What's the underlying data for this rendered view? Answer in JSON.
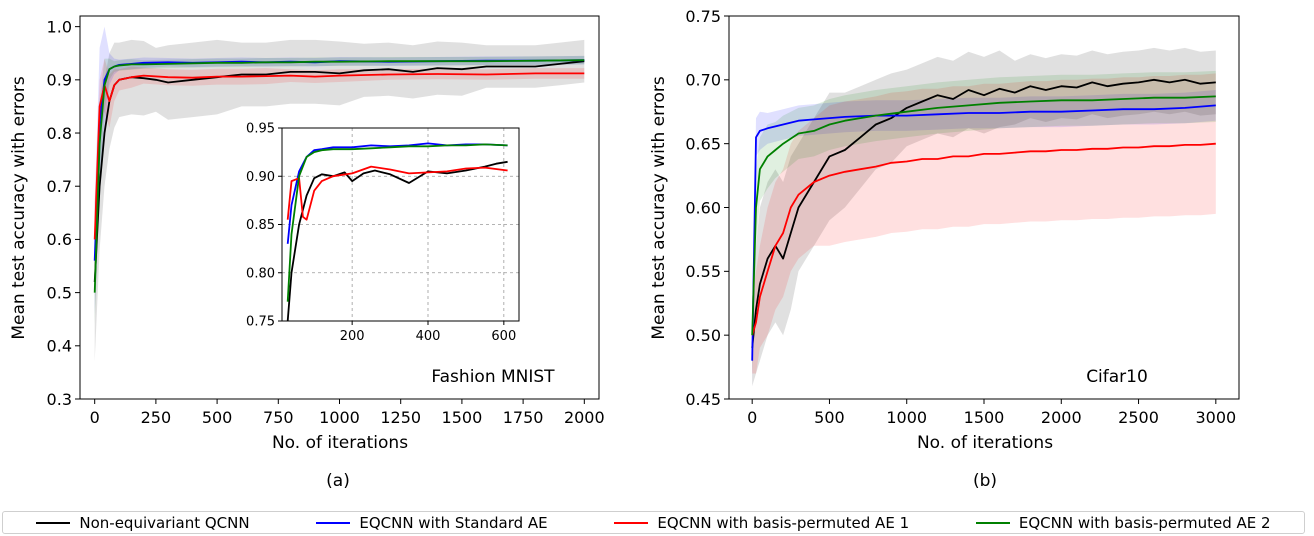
{
  "legend": [
    {
      "label": "Non-equivariant QCNN",
      "color": "#000000"
    },
    {
      "label": "EQCNN with Standard AE",
      "color": "#0000ff"
    },
    {
      "label": "EQCNN with basis-permuted AE 1",
      "color": "#ff0000"
    },
    {
      "label": "EQCNN with basis-permuted AE 2",
      "color": "#008000"
    }
  ],
  "chart_data": [
    {
      "type": "line",
      "panel_label": "(a)",
      "annotation": "Fashion MNIST",
      "xlabel": "No. of iterations",
      "ylabel": "Mean test accuracy with errors",
      "xlim": [
        -60,
        2060
      ],
      "ylim": [
        0.3,
        1.02
      ],
      "xticks": [
        0,
        250,
        500,
        750,
        1000,
        1250,
        1500,
        1750,
        2000
      ],
      "yticks": [
        0.3,
        0.4,
        0.5,
        0.6,
        0.7,
        0.8,
        0.9,
        1.0
      ],
      "ytick_labels": [
        "0.3",
        "0.4",
        "0.5",
        "0.6",
        "0.7",
        "0.8",
        "0.9",
        "1.0"
      ],
      "grid": false,
      "series": [
        {
          "name": "Non-equivariant QCNN",
          "color": "#000000",
          "x": [
            0,
            20,
            40,
            60,
            80,
            100,
            150,
            200,
            250,
            300,
            400,
            500,
            600,
            700,
            800,
            900,
            1000,
            1100,
            1200,
            1300,
            1400,
            1500,
            1600,
            1700,
            1800,
            1900,
            2000
          ],
          "y": [
            0.52,
            0.7,
            0.8,
            0.86,
            0.89,
            0.9,
            0.905,
            0.903,
            0.9,
            0.895,
            0.9,
            0.905,
            0.91,
            0.91,
            0.915,
            0.915,
            0.912,
            0.918,
            0.92,
            0.915,
            0.922,
            0.92,
            0.925,
            0.925,
            0.925,
            0.93,
            0.935
          ],
          "err": [
            0.15,
            0.12,
            0.1,
            0.09,
            0.08,
            0.07,
            0.07,
            0.07,
            0.06,
            0.07,
            0.07,
            0.07,
            0.06,
            0.06,
            0.06,
            0.06,
            0.06,
            0.05,
            0.05,
            0.05,
            0.05,
            0.05,
            0.04,
            0.04,
            0.04,
            0.04,
            0.04
          ]
        },
        {
          "name": "EQCNN with Standard AE",
          "color": "#0000ff",
          "x": [
            0,
            20,
            40,
            60,
            80,
            100,
            150,
            200,
            300,
            400,
            500,
            600,
            700,
            800,
            900,
            1000,
            1200,
            1400,
            1600,
            1800,
            2000
          ],
          "y": [
            0.56,
            0.82,
            0.9,
            0.92,
            0.925,
            0.928,
            0.93,
            0.932,
            0.933,
            0.932,
            0.933,
            0.934,
            0.933,
            0.934,
            0.933,
            0.935,
            0.934,
            0.935,
            0.936,
            0.936,
            0.937
          ],
          "err": [
            0.1,
            0.14,
            0.1,
            0.03,
            0.015,
            0.01,
            0.01,
            0.01,
            0.008,
            0.008,
            0.008,
            0.008,
            0.008,
            0.008,
            0.008,
            0.008,
            0.008,
            0.008,
            0.008,
            0.008,
            0.008
          ]
        },
        {
          "name": "EQCNN with basis-permuted AE 1",
          "color": "#ff0000",
          "x": [
            0,
            20,
            40,
            60,
            80,
            100,
            150,
            200,
            300,
            400,
            500,
            600,
            700,
            800,
            900,
            1000,
            1200,
            1400,
            1600,
            1800,
            2000
          ],
          "y": [
            0.6,
            0.85,
            0.89,
            0.86,
            0.89,
            0.9,
            0.905,
            0.908,
            0.905,
            0.904,
            0.906,
            0.906,
            0.907,
            0.908,
            0.906,
            0.908,
            0.91,
            0.911,
            0.91,
            0.912,
            0.912
          ],
          "err": [
            0.08,
            0.05,
            0.05,
            0.05,
            0.03,
            0.02,
            0.02,
            0.015,
            0.015,
            0.015,
            0.015,
            0.015,
            0.015,
            0.012,
            0.012,
            0.012,
            0.01,
            0.01,
            0.01,
            0.01,
            0.01
          ]
        },
        {
          "name": "EQCNN with basis-permuted AE 2",
          "color": "#008000",
          "x": [
            0,
            20,
            40,
            60,
            80,
            100,
            150,
            200,
            300,
            400,
            500,
            600,
            700,
            800,
            900,
            1000,
            1200,
            1400,
            1600,
            1800,
            2000
          ],
          "y": [
            0.5,
            0.78,
            0.89,
            0.92,
            0.925,
            0.927,
            0.929,
            0.929,
            0.93,
            0.931,
            0.932,
            0.932,
            0.933,
            0.933,
            0.934,
            0.934,
            0.935,
            0.935,
            0.935,
            0.936,
            0.937
          ],
          "err": [
            0.06,
            0.08,
            0.05,
            0.02,
            0.01,
            0.01,
            0.01,
            0.008,
            0.008,
            0.008,
            0.008,
            0.008,
            0.008,
            0.008,
            0.008,
            0.008,
            0.008,
            0.008,
            0.008,
            0.008,
            0.008
          ]
        }
      ],
      "inset": {
        "xlim": [
          15,
          640
        ],
        "ylim": [
          0.75,
          0.95
        ],
        "xticks": [
          200,
          400,
          600
        ],
        "yticks": [
          0.75,
          0.8,
          0.85,
          0.9,
          0.95
        ],
        "ytick_labels": [
          "0.75",
          "0.80",
          "0.85",
          "0.90",
          "0.95"
        ],
        "grid": true,
        "series": [
          {
            "name": "Non-equivariant QCNN",
            "color": "#000000",
            "x": [
              30,
              40,
              60,
              80,
              100,
              120,
              150,
              180,
              200,
              230,
              260,
              300,
              350,
              400,
              450,
              500,
              550,
              580,
              610
            ],
            "y": [
              0.75,
              0.8,
              0.85,
              0.88,
              0.898,
              0.902,
              0.9,
              0.904,
              0.895,
              0.903,
              0.906,
              0.902,
              0.893,
              0.905,
              0.903,
              0.906,
              0.91,
              0.913,
              0.915
            ]
          },
          {
            "name": "EQCNN with Standard AE",
            "color": "#0000ff",
            "x": [
              30,
              40,
              60,
              80,
              100,
              120,
              150,
              200,
              250,
              300,
              350,
              400,
              450,
              500,
              550,
              610
            ],
            "y": [
              0.83,
              0.87,
              0.905,
              0.92,
              0.927,
              0.928,
              0.93,
              0.93,
              0.932,
              0.931,
              0.932,
              0.934,
              0.932,
              0.933,
              0.933,
              0.932
            ]
          },
          {
            "name": "EQCNN with basis-permuted AE 1",
            "color": "#ff0000",
            "x": [
              30,
              40,
              60,
              70,
              80,
              100,
              120,
              150,
              200,
              250,
              300,
              350,
              400,
              450,
              500,
              550,
              610
            ],
            "y": [
              0.855,
              0.895,
              0.898,
              0.858,
              0.855,
              0.885,
              0.895,
              0.9,
              0.903,
              0.91,
              0.907,
              0.903,
              0.904,
              0.905,
              0.908,
              0.909,
              0.906
            ]
          },
          {
            "name": "EQCNN with basis-permuted AE 2",
            "color": "#008000",
            "x": [
              30,
              40,
              60,
              80,
              100,
              120,
              150,
              200,
              250,
              300,
              350,
              400,
              450,
              500,
              550,
              610
            ],
            "y": [
              0.77,
              0.84,
              0.9,
              0.92,
              0.925,
              0.927,
              0.928,
              0.928,
              0.929,
              0.93,
              0.931,
              0.931,
              0.932,
              0.932,
              0.933,
              0.932
            ]
          }
        ]
      }
    },
    {
      "type": "line",
      "panel_label": "(b)",
      "annotation": "Cifar10",
      "xlabel": "No. of iterations",
      "ylabel": "Mean test accuracy with errors",
      "xlim": [
        -150,
        3150
      ],
      "ylim": [
        0.45,
        0.75
      ],
      "xticks": [
        0,
        500,
        1000,
        1500,
        2000,
        2500,
        3000
      ],
      "yticks": [
        0.45,
        0.5,
        0.55,
        0.6,
        0.65,
        0.7,
        0.75
      ],
      "ytick_labels": [
        "0.45",
        "0.50",
        "0.55",
        "0.60",
        "0.65",
        "0.70",
        "0.75"
      ],
      "grid": false,
      "series": [
        {
          "name": "Non-equivariant QCNN",
          "color": "#000000",
          "x": [
            0,
            25,
            50,
            100,
            150,
            200,
            250,
            300,
            400,
            500,
            600,
            700,
            800,
            900,
            1000,
            1100,
            1200,
            1300,
            1400,
            1500,
            1600,
            1700,
            1800,
            1900,
            2000,
            2100,
            2200,
            2300,
            2400,
            2500,
            2600,
            2700,
            2800,
            2900,
            3000
          ],
          "y": [
            0.49,
            0.52,
            0.54,
            0.56,
            0.57,
            0.56,
            0.58,
            0.6,
            0.62,
            0.64,
            0.645,
            0.655,
            0.665,
            0.67,
            0.678,
            0.683,
            0.688,
            0.685,
            0.692,
            0.688,
            0.693,
            0.69,
            0.695,
            0.692,
            0.695,
            0.694,
            0.698,
            0.695,
            0.697,
            0.698,
            0.7,
            0.698,
            0.7,
            0.697,
            0.698
          ],
          "err": [
            0.03,
            0.05,
            0.06,
            0.06,
            0.06,
            0.06,
            0.06,
            0.05,
            0.05,
            0.05,
            0.045,
            0.04,
            0.035,
            0.035,
            0.03,
            0.03,
            0.03,
            0.03,
            0.03,
            0.03,
            0.03,
            0.025,
            0.025,
            0.025,
            0.025,
            0.025,
            0.025,
            0.025,
            0.025,
            0.025,
            0.025,
            0.025,
            0.025,
            0.025,
            0.025
          ]
        },
        {
          "name": "EQCNN with Standard AE",
          "color": "#0000ff",
          "x": [
            0,
            25,
            50,
            100,
            200,
            300,
            400,
            500,
            600,
            800,
            1000,
            1200,
            1400,
            1600,
            1800,
            2000,
            2200,
            2400,
            2600,
            2800,
            3000
          ],
          "y": [
            0.48,
            0.655,
            0.66,
            0.662,
            0.665,
            0.668,
            0.669,
            0.67,
            0.671,
            0.672,
            0.672,
            0.673,
            0.674,
            0.674,
            0.675,
            0.675,
            0.676,
            0.677,
            0.677,
            0.678,
            0.68
          ],
          "err": [
            0.02,
            0.015,
            0.015,
            0.012,
            0.012,
            0.012,
            0.012,
            0.012,
            0.012,
            0.012,
            0.012,
            0.012,
            0.012,
            0.012,
            0.012,
            0.012,
            0.012,
            0.012,
            0.012,
            0.012,
            0.012
          ]
        },
        {
          "name": "EQCNN with basis-permuted AE 1",
          "color": "#ff0000",
          "x": [
            0,
            25,
            50,
            100,
            150,
            200,
            250,
            300,
            400,
            500,
            600,
            700,
            800,
            900,
            1000,
            1100,
            1200,
            1300,
            1400,
            1500,
            1600,
            1700,
            1800,
            1900,
            2000,
            2100,
            2200,
            2300,
            2400,
            2500,
            2600,
            2700,
            2800,
            2900,
            3000
          ],
          "y": [
            0.5,
            0.51,
            0.53,
            0.55,
            0.57,
            0.58,
            0.6,
            0.61,
            0.62,
            0.625,
            0.628,
            0.63,
            0.632,
            0.635,
            0.636,
            0.638,
            0.638,
            0.64,
            0.64,
            0.642,
            0.642,
            0.643,
            0.644,
            0.644,
            0.645,
            0.645,
            0.646,
            0.646,
            0.647,
            0.647,
            0.648,
            0.648,
            0.649,
            0.649,
            0.65
          ],
          "err": [
            0.03,
            0.04,
            0.04,
            0.05,
            0.05,
            0.05,
            0.05,
            0.05,
            0.05,
            0.055,
            0.055,
            0.055,
            0.055,
            0.055,
            0.055,
            0.055,
            0.055,
            0.055,
            0.055,
            0.055,
            0.055,
            0.055,
            0.055,
            0.055,
            0.055,
            0.055,
            0.055,
            0.055,
            0.055,
            0.055,
            0.055,
            0.055,
            0.055,
            0.055,
            0.055
          ]
        },
        {
          "name": "EQCNN with basis-permuted AE 2",
          "color": "#008000",
          "x": [
            0,
            25,
            50,
            100,
            150,
            200,
            300,
            400,
            500,
            600,
            700,
            800,
            1000,
            1200,
            1400,
            1600,
            1800,
            2000,
            2200,
            2400,
            2600,
            2800,
            3000
          ],
          "y": [
            0.5,
            0.6,
            0.63,
            0.64,
            0.645,
            0.65,
            0.658,
            0.66,
            0.665,
            0.668,
            0.67,
            0.672,
            0.675,
            0.678,
            0.68,
            0.682,
            0.683,
            0.684,
            0.684,
            0.685,
            0.686,
            0.686,
            0.687
          ],
          "err": [
            0.03,
            0.03,
            0.025,
            0.025,
            0.022,
            0.022,
            0.02,
            0.02,
            0.02,
            0.02,
            0.02,
            0.02,
            0.02,
            0.02,
            0.02,
            0.02,
            0.02,
            0.02,
            0.02,
            0.02,
            0.02,
            0.02,
            0.02
          ]
        }
      ]
    }
  ]
}
